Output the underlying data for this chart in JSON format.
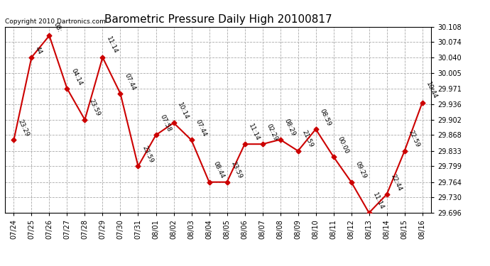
{
  "title": "Barometric Pressure Daily High 20100817",
  "copyright": "Copyright 2010 Dartronics.com",
  "x_labels": [
    "07/24",
    "07/25",
    "07/26",
    "07/27",
    "07/28",
    "07/29",
    "07/30",
    "07/31",
    "08/01",
    "08/02",
    "08/03",
    "08/04",
    "08/05",
    "08/06",
    "08/07",
    "08/08",
    "08/09",
    "08/10",
    "08/11",
    "08/12",
    "08/13",
    "08/14",
    "08/15",
    "08/16"
  ],
  "y_values": [
    29.857,
    30.04,
    30.088,
    29.971,
    29.902,
    30.04,
    29.96,
    29.799,
    29.868,
    29.895,
    29.857,
    29.764,
    29.764,
    29.848,
    29.848,
    29.858,
    29.833,
    29.881,
    29.82,
    29.764,
    29.696,
    29.737,
    29.833,
    29.94
  ],
  "point_labels": [
    "23:29",
    "44",
    "08:",
    "04:14",
    "23:59",
    "11:14",
    "07:44",
    "23:59",
    "07:58",
    "10:14",
    "07:44",
    "08:44",
    "23:59",
    "11:14",
    "02:29",
    "08:29",
    "21:59",
    "08:59",
    "00:00",
    "09:29",
    "11:14",
    "22:44",
    "22:59",
    "10:44"
  ],
  "ylim_min": 29.696,
  "ylim_max": 30.108,
  "yticks": [
    29.696,
    29.73,
    29.764,
    29.799,
    29.833,
    29.868,
    29.902,
    29.936,
    29.971,
    30.005,
    30.04,
    30.074,
    30.108
  ],
  "line_color": "#cc0000",
  "marker_color": "#cc0000",
  "bg_color": "#ffffff",
  "grid_color": "#aaaaaa",
  "title_fontsize": 11,
  "label_fontsize": 6.5,
  "tick_fontsize": 7,
  "copyright_fontsize": 6.5,
  "label_rotation": -65
}
